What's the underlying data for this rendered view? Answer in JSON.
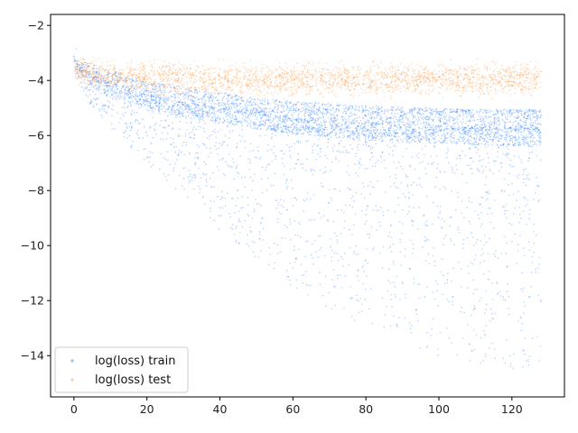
{
  "chart_data": {
    "type": "scatter",
    "title": "",
    "xlabel": "",
    "ylabel": "",
    "xlim": [
      -6.4,
      134.4
    ],
    "ylim": [
      -15.5,
      -1.6
    ],
    "x_ticks": [
      0,
      20,
      40,
      60,
      80,
      100,
      120
    ],
    "y_ticks": [
      -2,
      -4,
      -6,
      -8,
      -10,
      -12,
      -14
    ],
    "grid": false,
    "legend_placement": "lower-left",
    "series": [
      {
        "name": "log(loss) train",
        "color": "#1f77ff",
        "description_shape": "dense scatter band starting near -3.2 at x=0, central mass descending to about -5.7 by x=128, with a long downward tail reaching about -14.5 at large x; horizontal streaks near -5.1 and -5.75",
        "x": [
          0,
          2,
          5,
          10,
          20,
          30,
          40,
          50,
          60,
          70,
          80,
          90,
          100,
          110,
          120,
          128
        ],
        "y_median": [
          -3.2,
          -3.5,
          -3.8,
          -4.1,
          -4.5,
          -4.8,
          -5.0,
          -5.2,
          -5.35,
          -5.45,
          -5.55,
          -5.6,
          -5.65,
          -5.7,
          -5.72,
          -5.75
        ],
        "y_lower_extent": [
          -3.7,
          -4.3,
          -5.0,
          -5.8,
          -7.0,
          -8.2,
          -9.5,
          -10.5,
          -11.5,
          -12.3,
          -13.0,
          -13.5,
          -14.0,
          -14.3,
          -14.5,
          -14.6
        ],
        "y_upper_extent": [
          -2.4,
          -3.1,
          -3.3,
          -3.5,
          -3.9,
          -4.1,
          -4.3,
          -4.5,
          -4.6,
          -4.7,
          -4.75,
          -4.8,
          -4.85,
          -4.9,
          -4.9,
          -4.9
        ]
      },
      {
        "name": "log(loss) test",
        "color": "#ff9a45",
        "description_shape": "narrow orange band starting near -3.6, flattening around -3.9 to -4.0 across the full range",
        "x": [
          0,
          5,
          10,
          20,
          40,
          60,
          80,
          100,
          120,
          128
        ],
        "y_median": [
          -3.6,
          -3.8,
          -3.85,
          -3.9,
          -3.95,
          -3.95,
          -3.95,
          -3.95,
          -3.95,
          -3.95
        ],
        "y_spread": [
          0.35,
          0.4,
          0.45,
          0.45,
          0.45,
          0.45,
          0.45,
          0.45,
          0.45,
          0.45
        ]
      }
    ]
  }
}
